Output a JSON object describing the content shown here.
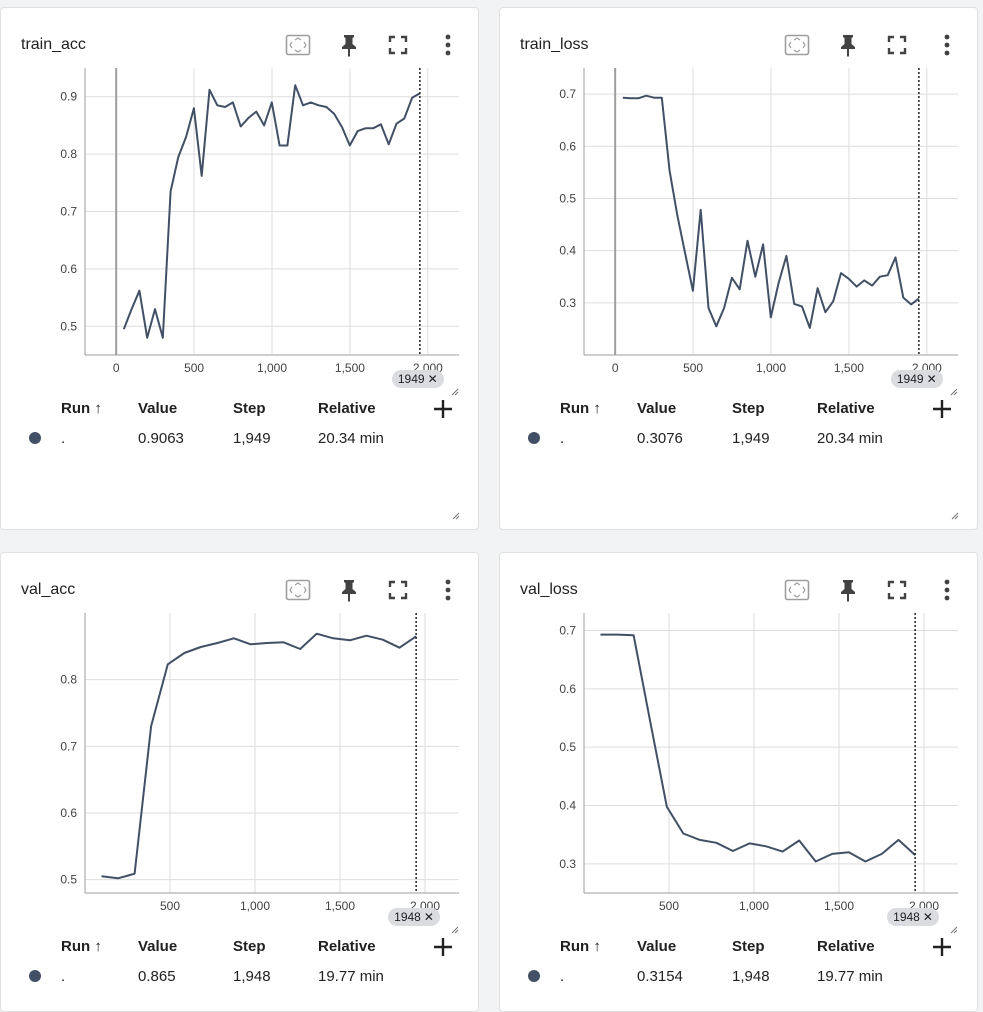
{
  "colors": {
    "line": "#425066",
    "grid": "#dddddd",
    "axis": "#9e9e9e",
    "dot": "#425066",
    "marker_chip": "#dadce0"
  },
  "table_headers": {
    "run": "Run ↑",
    "value": "Value",
    "step": "Step",
    "relative": "Relative"
  },
  "icons": {
    "fit": "fit-domain-icon",
    "pin": "pin-icon",
    "fullscreen": "fullscreen-icon",
    "more": "more-vert-icon",
    "add": "add-icon"
  },
  "cards": [
    {
      "id": "train_acc",
      "title": "train_acc",
      "marker_label": "1949",
      "row": {
        "run": ".",
        "value": "0.9063",
        "step": "1,949",
        "relative": "20.34 min"
      },
      "chart_data": {
        "type": "line",
        "xlabel": "",
        "ylabel": "",
        "x_ticks": [
          0,
          500,
          1000,
          1500,
          2000
        ],
        "x_tick_labels": [
          "0",
          "500",
          "1,000",
          "1,500",
          "2,000"
        ],
        "y_ticks": [
          0.5,
          0.6,
          0.7,
          0.8,
          0.9
        ],
        "y_tick_labels": [
          "0.5",
          "0.6",
          "0.7",
          "0.8",
          "0.9"
        ],
        "xlim": [
          -200,
          2200
        ],
        "ylim": [
          0.45,
          0.95
        ],
        "grid": true,
        "marker_x": 1949,
        "series": [
          {
            "x": [
              49,
              99,
              149,
              199,
              249,
              299,
              349,
              399,
              449,
              499,
              549,
              599,
              649,
              699,
              749,
              799,
              849,
              899,
              949,
              999,
              1049,
              1099,
              1149,
              1199,
              1249,
              1299,
              1349,
              1399,
              1449,
              1499,
              1549,
              1599,
              1649,
              1699,
              1749,
              1799,
              1849,
              1899,
              1949
            ],
            "y": [
              0.495,
              0.53,
              0.562,
              0.48,
              0.53,
              0.48,
              0.735,
              0.795,
              0.83,
              0.88,
              0.762,
              0.912,
              0.885,
              0.882,
              0.89,
              0.848,
              0.863,
              0.874,
              0.85,
              0.89,
              0.815,
              0.815,
              0.92,
              0.885,
              0.89,
              0.885,
              0.882,
              0.87,
              0.847,
              0.815,
              0.84,
              0.845,
              0.845,
              0.852,
              0.817,
              0.853,
              0.862,
              0.898,
              0.906
            ]
          }
        ]
      }
    },
    {
      "id": "train_loss",
      "title": "train_loss",
      "marker_label": "1949",
      "row": {
        "run": ".",
        "value": "0.3076",
        "step": "1,949",
        "relative": "20.34 min"
      },
      "chart_data": {
        "type": "line",
        "xlabel": "",
        "ylabel": "",
        "x_ticks": [
          0,
          500,
          1000,
          1500,
          2000
        ],
        "x_tick_labels": [
          "0",
          "500",
          "1,000",
          "1,500",
          "2,000"
        ],
        "y_ticks": [
          0.3,
          0.4,
          0.5,
          0.6,
          0.7
        ],
        "y_tick_labels": [
          "0.3",
          "0.4",
          "0.5",
          "0.6",
          "0.7"
        ],
        "xlim": [
          -200,
          2200
        ],
        "ylim": [
          0.2,
          0.75
        ],
        "grid": true,
        "marker_x": 1949,
        "series": [
          {
            "x": [
              49,
              99,
              149,
              199,
              249,
              299,
              349,
              399,
              449,
              499,
              549,
              599,
              649,
              699,
              749,
              799,
              849,
              899,
              949,
              999,
              1049,
              1099,
              1149,
              1199,
              1249,
              1299,
              1349,
              1399,
              1449,
              1499,
              1549,
              1599,
              1649,
              1699,
              1749,
              1799,
              1849,
              1899,
              1949
            ],
            "y": [
              0.693,
              0.692,
              0.692,
              0.697,
              0.693,
              0.693,
              0.553,
              0.468,
              0.395,
              0.323,
              0.478,
              0.29,
              0.255,
              0.29,
              0.348,
              0.326,
              0.419,
              0.35,
              0.412,
              0.272,
              0.338,
              0.39,
              0.298,
              0.293,
              0.252,
              0.328,
              0.282,
              0.303,
              0.357,
              0.346,
              0.331,
              0.343,
              0.333,
              0.35,
              0.353,
              0.387,
              0.31,
              0.297,
              0.308
            ]
          }
        ]
      }
    },
    {
      "id": "val_acc",
      "title": "val_acc",
      "marker_label": "1948",
      "row": {
        "run": ".",
        "value": "0.865",
        "step": "1,948",
        "relative": "19.77 min"
      },
      "chart_data": {
        "type": "line",
        "xlabel": "",
        "ylabel": "",
        "x_ticks": [
          500,
          1000,
          1500,
          2000
        ],
        "x_tick_labels": [
          "500",
          "1,000",
          "1,500",
          "2,000"
        ],
        "y_ticks": [
          0.5,
          0.6,
          0.7,
          0.8
        ],
        "y_tick_labels": [
          "0.5",
          "0.6",
          "0.7",
          "0.8"
        ],
        "xlim": [
          0,
          2200
        ],
        "ylim": [
          0.48,
          0.9
        ],
        "grid": true,
        "marker_x": 1948,
        "series": [
          {
            "x": [
              97,
              194,
              292,
              389,
              487,
              584,
              681,
              779,
              876,
              974,
              1071,
              1168,
              1266,
              1363,
              1460,
              1558,
              1655,
              1752,
              1850,
              1948
            ],
            "y": [
              0.505,
              0.502,
              0.509,
              0.73,
              0.823,
              0.84,
              0.849,
              0.855,
              0.862,
              0.853,
              0.855,
              0.856,
              0.846,
              0.869,
              0.862,
              0.859,
              0.866,
              0.86,
              0.848,
              0.865
            ]
          }
        ]
      }
    },
    {
      "id": "val_loss",
      "title": "val_loss",
      "marker_label": "1948",
      "row": {
        "run": ".",
        "value": "0.3154",
        "step": "1,948",
        "relative": "19.77 min"
      },
      "chart_data": {
        "type": "line",
        "xlabel": "",
        "ylabel": "",
        "x_ticks": [
          500,
          1000,
          1500,
          2000
        ],
        "x_tick_labels": [
          "500",
          "1,000",
          "1,500",
          "2,000"
        ],
        "y_ticks": [
          0.3,
          0.4,
          0.5,
          0.6,
          0.7
        ],
        "y_tick_labels": [
          "0.3",
          "0.4",
          "0.5",
          "0.6",
          "0.7"
        ],
        "xlim": [
          0,
          2200
        ],
        "ylim": [
          0.25,
          0.73
        ],
        "grid": true,
        "marker_x": 1948,
        "series": [
          {
            "x": [
              97,
              194,
              292,
              389,
              487,
              584,
              681,
              779,
              876,
              974,
              1071,
              1168,
              1266,
              1363,
              1460,
              1558,
              1655,
              1752,
              1850,
              1948
            ],
            "y": [
              0.693,
              0.693,
              0.692,
              0.545,
              0.398,
              0.352,
              0.341,
              0.336,
              0.322,
              0.335,
              0.33,
              0.321,
              0.34,
              0.304,
              0.317,
              0.32,
              0.304,
              0.317,
              0.341,
              0.315
            ]
          }
        ]
      }
    }
  ]
}
